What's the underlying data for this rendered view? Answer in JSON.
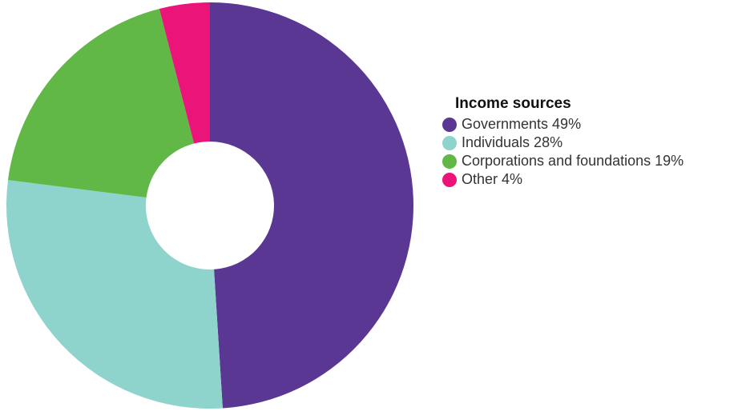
{
  "chart_data": {
    "type": "pie",
    "donut": true,
    "title": "",
    "legend_title": "Income sources",
    "legend_position": "right",
    "slices": [
      {
        "name": "Governments",
        "value": 49,
        "label": "Governments 49%",
        "color": "#5b3794"
      },
      {
        "name": "Individuals",
        "value": 28,
        "label": "Individuals 28%",
        "color": "#8fd3cd"
      },
      {
        "name": "Corporations and foundations",
        "value": 19,
        "label": "Corporations and foundations 19%",
        "color": "#62b846"
      },
      {
        "name": "Other",
        "value": 4,
        "label": "Other 4%",
        "color": "#eb1478"
      }
    ]
  }
}
